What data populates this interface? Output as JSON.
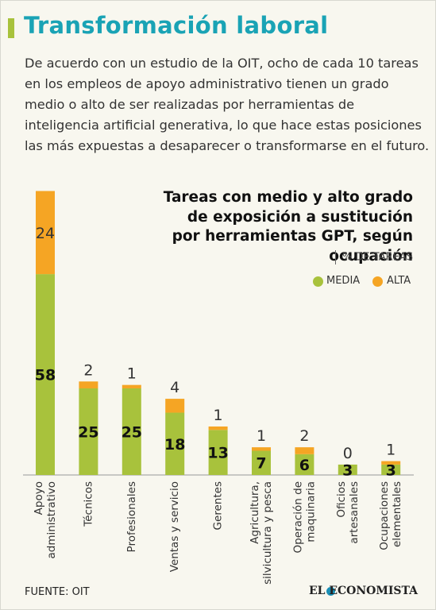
{
  "header": {
    "title": "Transformación laboral",
    "intro": "De acuerdo con un estudio de la OIT, ocho de cada 10 tareas en los empleos de apoyo administrativo tienen un grado medio o alto de ser realizadas por herramientas de inteligencia artificial generativa, lo que hace estas posiciones las más expuestas a desaparecer o transformarse en el futuro."
  },
  "chart_data": {
    "type": "stacked_bar",
    "title": "Tareas con medio y alto grado\nde exposición a sustitución\npor herramientas GPT, según\nocupación",
    "unit": "% DE TAREAS",
    "categories": [
      "Apoyo\nadministrativo",
      "Técnicos",
      "Profesionales",
      "Ventas y servicio",
      "Gerentes",
      "Agricultura,\nsilvicultura y pesca",
      "Operación de\nmaquinaria",
      "Oficios\nartesanales",
      "Ocupaciones\nelementales"
    ],
    "series": [
      {
        "name": "MEDIA",
        "color": "#a8c23c",
        "values": [
          58,
          25,
          25,
          18,
          13,
          7,
          6,
          3,
          3
        ]
      },
      {
        "name": "ALTA",
        "color": "#f5a524",
        "values": [
          24,
          2,
          1,
          4,
          1,
          1,
          2,
          0,
          1
        ]
      }
    ]
  },
  "footer": {
    "source": "FUENTE: OIT",
    "brand": "EL ECONOMISTA"
  }
}
